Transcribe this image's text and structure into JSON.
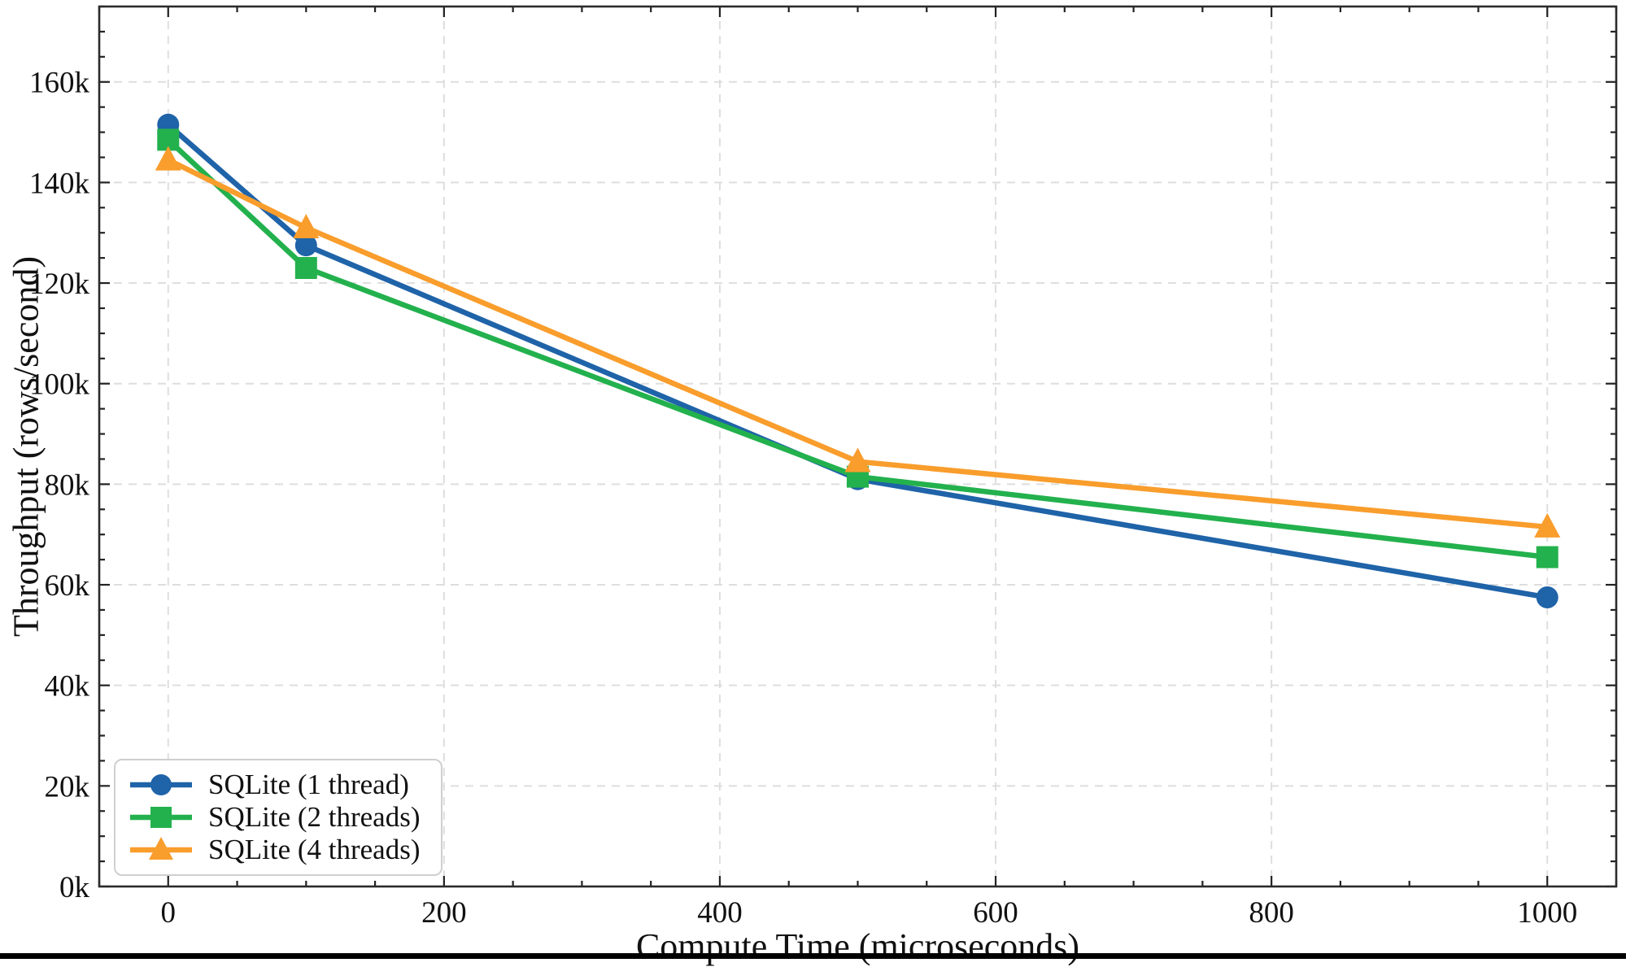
{
  "chart_data": {
    "type": "line",
    "title": "",
    "xlabel": "Compute Time (microseconds)",
    "ylabel": "Throughput (rows/second)",
    "x": [
      0,
      100,
      500,
      1000
    ],
    "series": [
      {
        "name": "SQLite (1 thread)",
        "marker": "circle",
        "color": "#1f63a8",
        "values": [
          151500,
          127500,
          81000,
          57500
        ]
      },
      {
        "name": "SQLite (2 threads)",
        "marker": "square",
        "color": "#23b14d",
        "values": [
          148500,
          123000,
          81500,
          65500
        ]
      },
      {
        "name": "SQLite (4 threads)",
        "marker": "triangle",
        "color": "#f99d2c",
        "values": [
          144500,
          131000,
          84500,
          71500
        ]
      }
    ],
    "xlim": [
      -50,
      1050
    ],
    "ylim": [
      0,
      175000
    ],
    "x_ticks": [
      0,
      200,
      400,
      600,
      800,
      1000
    ],
    "x_tick_labels": [
      "0",
      "200",
      "400",
      "600",
      "800",
      "1000"
    ],
    "y_ticks": [
      0,
      20000,
      40000,
      60000,
      80000,
      100000,
      120000,
      140000,
      160000
    ],
    "y_tick_labels": [
      "0k",
      "20k",
      "40k",
      "60k",
      "80k",
      "100k",
      "120k",
      "140k",
      "160k"
    ],
    "x_minor_step": 50,
    "y_minor_step": 5000,
    "grid": "dashed lines at major ticks, both axes",
    "legend_position": "lower left"
  },
  "style": {
    "background_color": "#ffffff",
    "grid_color": "#dedede",
    "spine_color": "#2b2b2b",
    "tick_color": "#222222",
    "text_color": "#111111",
    "legend_border_color": "#cfcfcf",
    "legend_bg_color": "#ffffff",
    "bottom_bar_color": "#000000"
  }
}
